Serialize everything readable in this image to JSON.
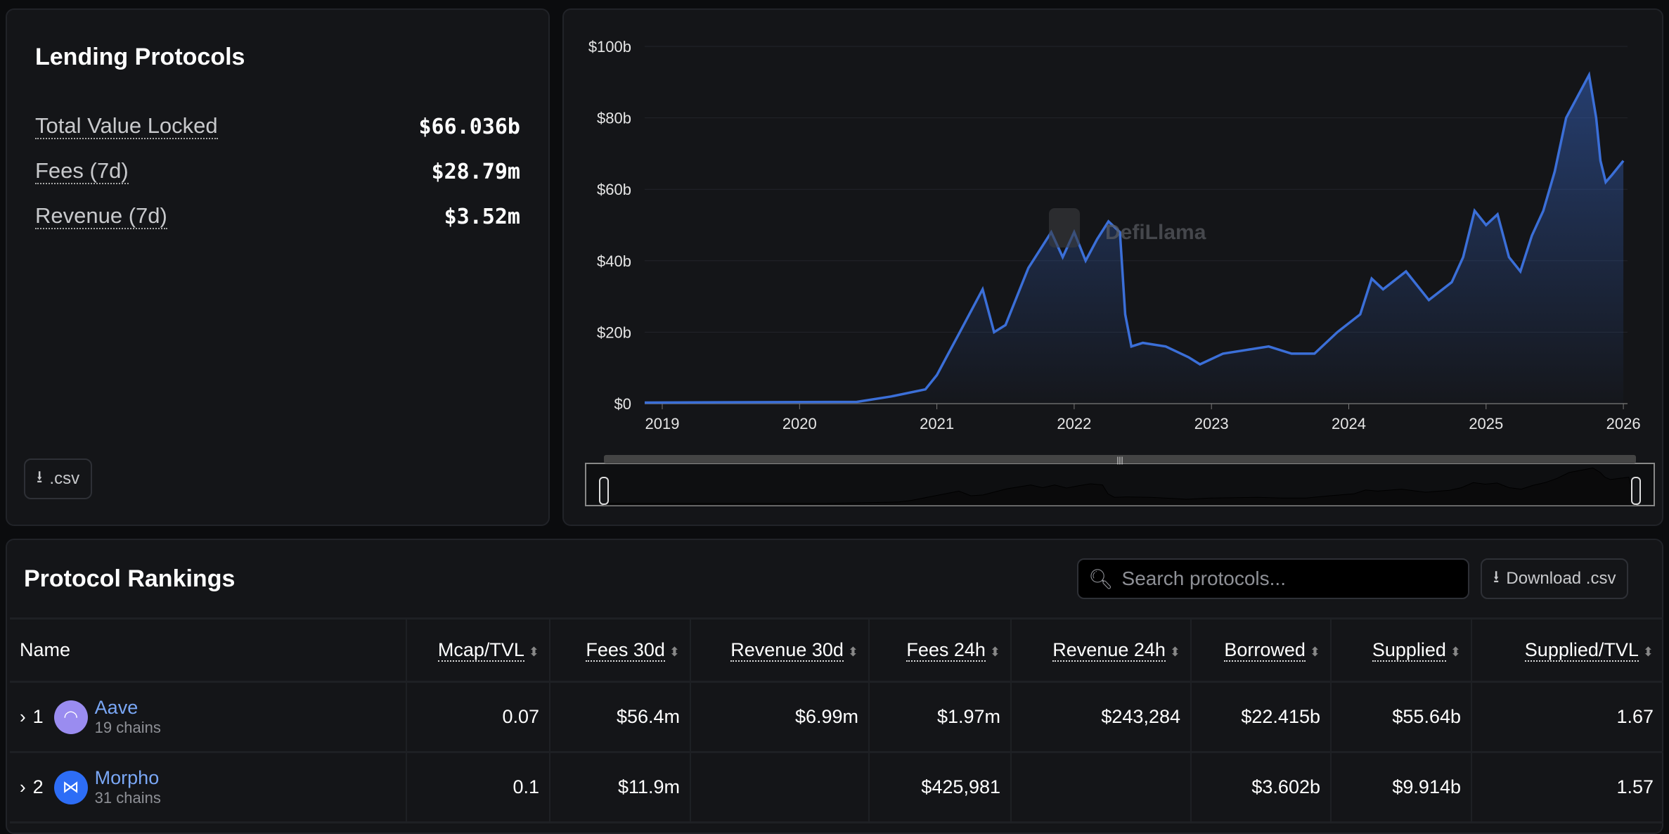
{
  "summary": {
    "title": "Lending Protocols",
    "stats": [
      {
        "label": "Total Value Locked",
        "value": "$66.036b"
      },
      {
        "label": "Fees (7d)",
        "value": "$28.79m"
      },
      {
        "label": "Revenue (7d)",
        "value": "$3.52m"
      }
    ],
    "csv_label": ".csv"
  },
  "chart_data": {
    "type": "area",
    "watermark": "DefiLlama",
    "color": "#3b6fd8",
    "y_ticks": [
      "$0",
      "$20b",
      "$40b",
      "$60b",
      "$80b",
      "$100b"
    ],
    "ylim": [
      0,
      100
    ],
    "x_ticks": [
      "2019",
      "2020",
      "2021",
      "2022",
      "2023",
      "2024",
      "2025",
      "2026"
    ],
    "points": [
      [
        "2018-11",
        0.3
      ],
      [
        "2020-06",
        0.5
      ],
      [
        "2020-09",
        2
      ],
      [
        "2020-12",
        4
      ],
      [
        "2021-01",
        8
      ],
      [
        "2021-03",
        20
      ],
      [
        "2021-05",
        32
      ],
      [
        "2021-06",
        20
      ],
      [
        "2021-07",
        22
      ],
      [
        "2021-08",
        30
      ],
      [
        "2021-09",
        38
      ],
      [
        "2021-10",
        43
      ],
      [
        "2021-11",
        48
      ],
      [
        "2021-12",
        41
      ],
      [
        "2022-01",
        48
      ],
      [
        "2022-02",
        40
      ],
      [
        "2022-03",
        46
      ],
      [
        "2022-04",
        51
      ],
      [
        "2022-05",
        48
      ],
      [
        "2022-05-15",
        25
      ],
      [
        "2022-06",
        16
      ],
      [
        "2022-07",
        17
      ],
      [
        "2022-09",
        16
      ],
      [
        "2022-11",
        13
      ],
      [
        "2022-12",
        11
      ],
      [
        "2023-02",
        14
      ],
      [
        "2023-04",
        15
      ],
      [
        "2023-06",
        16
      ],
      [
        "2023-08",
        14
      ],
      [
        "2023-10",
        14
      ],
      [
        "2023-12",
        20
      ],
      [
        "2024-02",
        25
      ],
      [
        "2024-03",
        35
      ],
      [
        "2024-04",
        32
      ],
      [
        "2024-06",
        37
      ],
      [
        "2024-08",
        29
      ],
      [
        "2024-10",
        34
      ],
      [
        "2024-11",
        41
      ],
      [
        "2024-12",
        54
      ],
      [
        "2025-01",
        50
      ],
      [
        "2025-02",
        53
      ],
      [
        "2025-03",
        41
      ],
      [
        "2025-04",
        37
      ],
      [
        "2025-05",
        47
      ],
      [
        "2025-06",
        54
      ],
      [
        "2025-07",
        65
      ],
      [
        "2025-08",
        80
      ],
      [
        "2025-09",
        86
      ],
      [
        "2025-10",
        92
      ],
      [
        "2025-10-20",
        80
      ],
      [
        "2025-11",
        68
      ],
      [
        "2025-11-15",
        62
      ],
      [
        "2025-12",
        64
      ],
      [
        "2026-01",
        68
      ]
    ]
  },
  "rankings": {
    "title": "Protocol Rankings",
    "search_placeholder": "Search protocols...",
    "download_label": "Download .csv",
    "columns": [
      "Name",
      "Mcap/TVL",
      "Fees 30d",
      "Revenue 30d",
      "Fees 24h",
      "Revenue 24h",
      "Borrowed",
      "Supplied",
      "Supplied/TVL"
    ],
    "rows": [
      {
        "rank": "1",
        "name": "Aave",
        "chains": "19 chains",
        "logo_color": "#9a8cf0",
        "cells": [
          "0.07",
          "$56.4m",
          "$6.99m",
          "$1.97m",
          "$243,284",
          "$22.415b",
          "$55.64b",
          "1.67"
        ]
      },
      {
        "rank": "2",
        "name": "Morpho",
        "chains": "31 chains",
        "logo_color": "#2d6df6",
        "cells": [
          "0.1",
          "$11.9m",
          "",
          "$425,981",
          "",
          "$3.602b",
          "$9.914b",
          "1.57"
        ]
      }
    ]
  }
}
